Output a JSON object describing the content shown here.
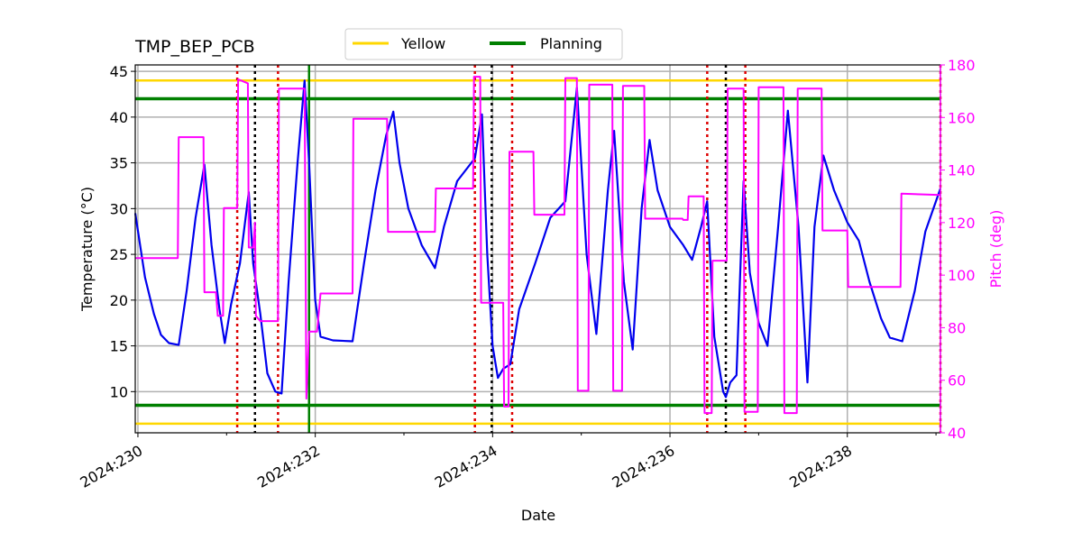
{
  "chart_data": {
    "type": "line",
    "title": "TMP_BEP_PCB",
    "xlabel": "Date",
    "ylabel": "Temperature ($^\\circ$C)",
    "ylabel_display": "Temperature (°C)",
    "y2label": "Pitch (deg)",
    "xlim": [
      229.97,
      239.05
    ],
    "ylim": [
      5.5,
      45.7
    ],
    "y2lim": [
      40,
      180
    ],
    "grid": true,
    "legend_position": "top-center",
    "x_ticks": [
      {
        "value": 230,
        "label": "2024:230"
      },
      {
        "value": 232,
        "label": "2024:232"
      },
      {
        "value": 234,
        "label": "2024:234"
      },
      {
        "value": 236,
        "label": "2024:236"
      },
      {
        "value": 238,
        "label": "2024:238"
      }
    ],
    "y_ticks": [
      10,
      15,
      20,
      25,
      30,
      35,
      40,
      45
    ],
    "y2_ticks": [
      40,
      60,
      80,
      100,
      120,
      140,
      160,
      180
    ],
    "colors": {
      "temperature": "#0000ee",
      "pitch": "#ff00ff",
      "yellow": "#ffd700",
      "planning": "#008000",
      "grid": "#b0b0b0",
      "red_event": "#dd0000",
      "black_event": "#000000",
      "now_line": "#008000"
    },
    "limits": [
      {
        "name": "Yellow",
        "values": [
          44,
          6.5
        ]
      },
      {
        "name": "Planning",
        "values": [
          42,
          8.5
        ]
      }
    ],
    "legend": [
      "Yellow",
      "Planning"
    ],
    "now_line_x": 231.93,
    "red_events": [
      231.12,
      231.58,
      233.8,
      234.22,
      236.42,
      236.85,
      239.05
    ],
    "black_events": [
      231.32,
      233.99,
      236.63
    ],
    "series": [
      {
        "name": "Temperature",
        "axis": "left",
        "points": [
          [
            229.97,
            29.5
          ],
          [
            230.08,
            22.5
          ],
          [
            230.18,
            18.5
          ],
          [
            230.26,
            16.2
          ],
          [
            230.35,
            15.3
          ],
          [
            230.46,
            15.1
          ],
          [
            230.55,
            21.0
          ],
          [
            230.65,
            29.0
          ],
          [
            230.75,
            34.8
          ],
          [
            230.83,
            26.0
          ],
          [
            230.92,
            19.0
          ],
          [
            230.98,
            15.3
          ],
          [
            231.05,
            19.5
          ],
          [
            231.15,
            24.0
          ],
          [
            231.25,
            31.8
          ],
          [
            231.3,
            24.0
          ],
          [
            231.38,
            18.5
          ],
          [
            231.46,
            12.0
          ],
          [
            231.55,
            10.0
          ],
          [
            231.62,
            9.8
          ],
          [
            231.7,
            22.0
          ],
          [
            231.8,
            35.0
          ],
          [
            231.88,
            44.0
          ],
          [
            231.93,
            35.0
          ],
          [
            232.0,
            20.0
          ],
          [
            232.06,
            16.0
          ],
          [
            232.2,
            15.6
          ],
          [
            232.42,
            15.5
          ],
          [
            232.55,
            24.0
          ],
          [
            232.68,
            32.0
          ],
          [
            232.8,
            38.0
          ],
          [
            232.88,
            40.6
          ],
          [
            232.95,
            35.0
          ],
          [
            233.05,
            30.0
          ],
          [
            233.2,
            26.0
          ],
          [
            233.35,
            23.5
          ],
          [
            233.45,
            28.0
          ],
          [
            233.6,
            33.0
          ],
          [
            233.8,
            35.5
          ],
          [
            233.88,
            40.3
          ],
          [
            233.94,
            25.0
          ],
          [
            234.0,
            15.0
          ],
          [
            234.06,
            11.5
          ],
          [
            234.12,
            12.5
          ],
          [
            234.2,
            13.0
          ],
          [
            234.3,
            19.0
          ],
          [
            234.48,
            24.0
          ],
          [
            234.65,
            29.0
          ],
          [
            234.82,
            30.8
          ],
          [
            234.95,
            43.2
          ],
          [
            235.06,
            25.0
          ],
          [
            235.17,
            16.3
          ],
          [
            235.3,
            32.0
          ],
          [
            235.37,
            38.5
          ],
          [
            235.48,
            22.0
          ],
          [
            235.58,
            14.6
          ],
          [
            235.68,
            30.0
          ],
          [
            235.77,
            37.5
          ],
          [
            235.86,
            32.0
          ],
          [
            236.0,
            28.0
          ],
          [
            236.15,
            26.0
          ],
          [
            236.25,
            24.4
          ],
          [
            236.35,
            28.0
          ],
          [
            236.42,
            30.8
          ],
          [
            236.5,
            16.0
          ],
          [
            236.6,
            10.0
          ],
          [
            236.63,
            9.4
          ],
          [
            236.68,
            11.0
          ],
          [
            236.75,
            11.8
          ],
          [
            236.83,
            33.0
          ],
          [
            236.9,
            23.0
          ],
          [
            237.0,
            17.5
          ],
          [
            237.1,
            15.0
          ],
          [
            237.22,
            28.0
          ],
          [
            237.33,
            40.7
          ],
          [
            237.45,
            28.0
          ],
          [
            237.55,
            11.0
          ],
          [
            237.63,
            28.0
          ],
          [
            237.73,
            35.8
          ],
          [
            237.85,
            32.0
          ],
          [
            238.0,
            28.5
          ],
          [
            238.13,
            26.5
          ],
          [
            238.25,
            22.0
          ],
          [
            238.38,
            18.0
          ],
          [
            238.48,
            15.9
          ],
          [
            238.62,
            15.5
          ],
          [
            238.76,
            21.0
          ],
          [
            238.88,
            27.5
          ],
          [
            239.05,
            32.2
          ]
        ]
      },
      {
        "name": "Pitch",
        "axis": "right",
        "points": [
          [
            229.97,
            106.5
          ],
          [
            230.45,
            106.5
          ],
          [
            230.46,
            152.5
          ],
          [
            230.74,
            152.5
          ],
          [
            230.75,
            93.5
          ],
          [
            230.88,
            93.5
          ],
          [
            230.9,
            84.5
          ],
          [
            230.96,
            84.5
          ],
          [
            230.97,
            125.5
          ],
          [
            231.12,
            125.5
          ],
          [
            231.13,
            174.5
          ],
          [
            231.24,
            173.0
          ],
          [
            231.25,
            110.5
          ],
          [
            231.3,
            110.5
          ],
          [
            231.32,
            120.0
          ],
          [
            231.33,
            84.5
          ],
          [
            231.38,
            82.5
          ],
          [
            231.58,
            82.5
          ],
          [
            231.59,
            171.0
          ],
          [
            231.88,
            171.0
          ],
          [
            231.9,
            53.0
          ],
          [
            231.93,
            78.5
          ],
          [
            232.02,
            78.5
          ],
          [
            232.06,
            93.0
          ],
          [
            232.42,
            93.0
          ],
          [
            232.43,
            159.5
          ],
          [
            232.81,
            159.5
          ],
          [
            232.82,
            116.5
          ],
          [
            233.35,
            116.5
          ],
          [
            233.36,
            133.0
          ],
          [
            233.78,
            133.0
          ],
          [
            233.79,
            175.5
          ],
          [
            233.86,
            175.5
          ],
          [
            233.87,
            89.5
          ],
          [
            234.12,
            89.5
          ],
          [
            234.13,
            50.0
          ],
          [
            234.18,
            50.0
          ],
          [
            234.19,
            147.0
          ],
          [
            234.46,
            147.0
          ],
          [
            234.47,
            123.0
          ],
          [
            234.81,
            123.0
          ],
          [
            234.82,
            175.0
          ],
          [
            234.95,
            175.0
          ],
          [
            234.96,
            56.0
          ],
          [
            235.08,
            56.0
          ],
          [
            235.09,
            172.5
          ],
          [
            235.35,
            172.5
          ],
          [
            235.36,
            56.0
          ],
          [
            235.46,
            56.0
          ],
          [
            235.47,
            172.0
          ],
          [
            235.71,
            172.0
          ],
          [
            235.72,
            121.5
          ],
          [
            236.14,
            121.5
          ],
          [
            236.15,
            121.0
          ],
          [
            236.2,
            121.0
          ],
          [
            236.21,
            130.0
          ],
          [
            236.38,
            130.0
          ],
          [
            236.39,
            47.5
          ],
          [
            236.47,
            47.5
          ],
          [
            236.48,
            105.5
          ],
          [
            236.64,
            105.5
          ],
          [
            236.65,
            171.0
          ],
          [
            236.83,
            171.0
          ],
          [
            236.84,
            48.0
          ],
          [
            236.99,
            48.0
          ],
          [
            237.0,
            171.5
          ],
          [
            237.28,
            171.5
          ],
          [
            237.29,
            47.5
          ],
          [
            237.43,
            47.5
          ],
          [
            237.44,
            171.0
          ],
          [
            237.71,
            171.0
          ],
          [
            237.72,
            117.0
          ],
          [
            238.0,
            117.0
          ],
          [
            238.01,
            95.5
          ],
          [
            238.6,
            95.5
          ],
          [
            238.61,
            131.0
          ],
          [
            239.05,
            130.5
          ]
        ]
      }
    ]
  }
}
